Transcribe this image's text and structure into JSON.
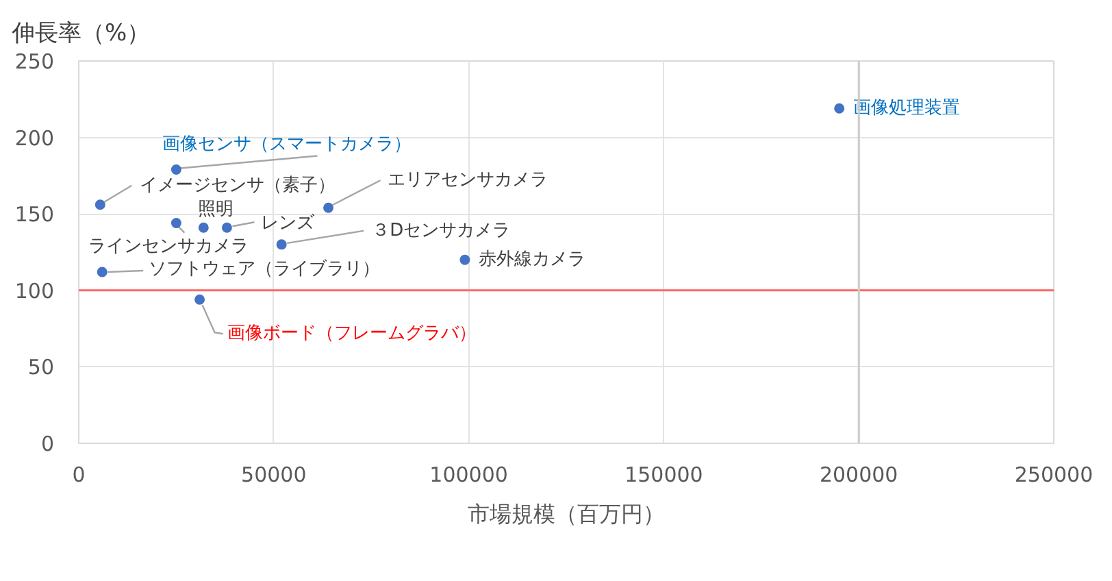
{
  "chart_data": {
    "type": "scatter",
    "xlabel": "市場規模（百万円）",
    "ylabel": "伸長率（%）",
    "x": [
      5500,
      25000,
      25000,
      32000,
      38000,
      64000,
      52000,
      99000,
      6000,
      31000,
      195000
    ],
    "series": [
      {
        "color": "#4472c4",
        "values": [
          156,
          179,
          144,
          141,
          141,
          154,
          130,
          120,
          112,
          94,
          219
        ]
      }
    ],
    "marker": "circle",
    "xlim": [
      0,
      250000
    ],
    "ylim": [
      0,
      250
    ],
    "xticks": [
      0,
      50000,
      100000,
      150000,
      200000,
      250000
    ],
    "yticks": [
      0,
      50,
      100,
      150,
      200,
      250
    ],
    "grid": true,
    "ref_lines": [
      {
        "axis": "y",
        "value": 100,
        "color": "#ff6b6b"
      },
      {
        "axis": "x",
        "value": 200000,
        "color": "#cdcdcd"
      }
    ],
    "annotations": [
      {
        "text": "イメージセンサ（素子）",
        "x": 5500,
        "y": 156
      },
      {
        "text": "画像センサ（スマートカメラ）",
        "x": 25000,
        "y": 179
      },
      {
        "text": "ラインセンサカメラ",
        "x": 25000,
        "y": 144
      },
      {
        "text": "照明",
        "x": 32000,
        "y": 141
      },
      {
        "text": "レンズ",
        "x": 38000,
        "y": 141
      },
      {
        "text": "エリアセンサカメラ",
        "x": 64000,
        "y": 154
      },
      {
        "text": "３Dセンサカメラ",
        "x": 52000,
        "y": 130
      },
      {
        "text": "赤外線カメラ",
        "x": 99000,
        "y": 120
      },
      {
        "text": "ソフトウェア（ライブラリ）",
        "x": 6000,
        "y": 112
      },
      {
        "text": "画像ボード（フレームグラバ）",
        "x": 31000,
        "y": 94
      },
      {
        "text": "画像処理装置",
        "x": 195000,
        "y": 219
      }
    ]
  }
}
